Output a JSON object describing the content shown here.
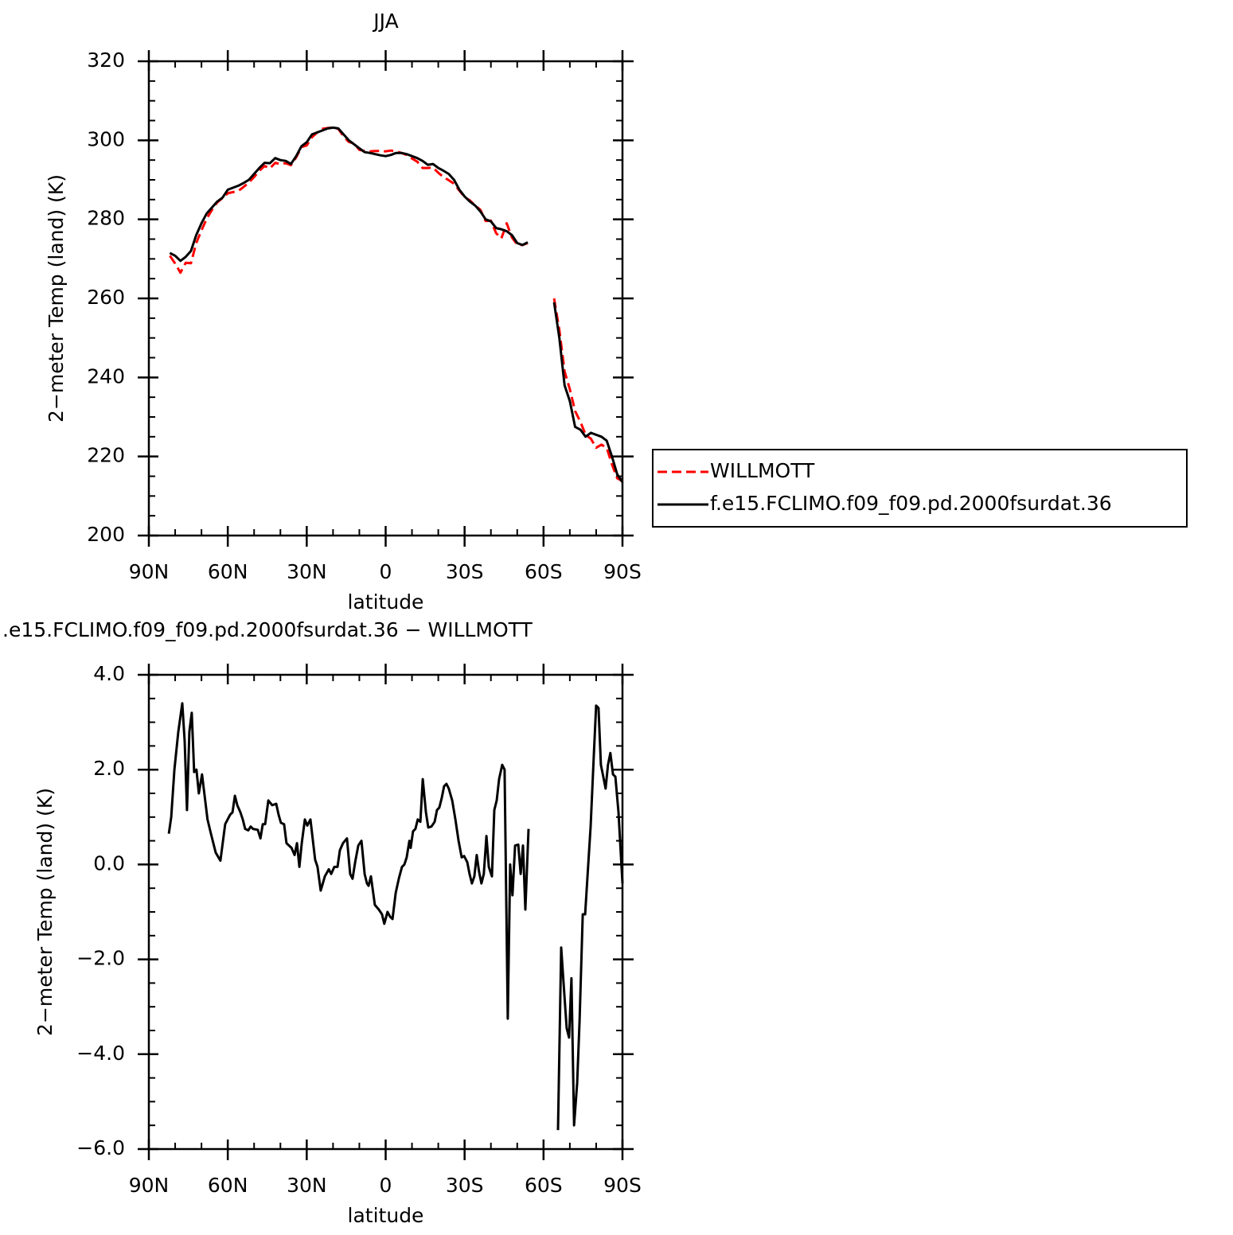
{
  "chart_data": [
    {
      "type": "line",
      "title": "JJA",
      "xlabel": "latitude",
      "ylabel": "2−meter Temp (land) (K)",
      "xlim": [
        90,
        -90
      ],
      "xticks": [
        {
          "value": 90,
          "label": "90N"
        },
        {
          "value": 60,
          "label": "60N"
        },
        {
          "value": 30,
          "label": "30N"
        },
        0,
        {
          "value": -30,
          "label": "30S"
        },
        {
          "value": -60,
          "label": "60S"
        },
        {
          "value": -90,
          "label": "90S"
        }
      ],
      "ylim": [
        200,
        320
      ],
      "yticks": [
        200,
        220,
        240,
        260,
        280,
        300,
        320
      ],
      "legend": "right",
      "x": [
        82,
        80,
        78,
        76,
        74,
        72,
        70,
        68,
        66,
        64,
        62,
        60,
        58,
        56,
        54,
        52,
        50,
        48,
        46,
        44,
        42,
        40,
        38,
        36,
        34,
        32,
        30,
        28,
        26,
        24,
        22,
        20,
        18,
        16,
        14,
        12,
        10,
        8,
        6,
        4,
        2,
        0,
        -2,
        -4,
        -6,
        -8,
        -10,
        -12,
        -14,
        -16,
        -18,
        -20,
        -22,
        -24,
        -26,
        -28,
        -30,
        -32,
        -34,
        -36,
        -38,
        -40,
        -42,
        -44,
        -46,
        -48,
        -50,
        -52,
        -54,
        -60,
        -64,
        -66,
        -68,
        -70,
        -72,
        -74,
        -76,
        -78,
        -80,
        -82,
        -84,
        -86,
        -88,
        -90
      ],
      "series": [
        {
          "name": "WILLMOTT",
          "color": "#ff0000",
          "dash": true,
          "values": [
            270.8,
            268.8,
            266.5,
            269,
            268.9,
            274,
            277.2,
            280.2,
            282.4,
            284.3,
            285.4,
            286.6,
            286.9,
            287.2,
            288.2,
            289.3,
            290.7,
            292.3,
            293.5,
            292.9,
            294.3,
            294,
            294.2,
            293.7,
            295.7,
            298.3,
            298.7,
            300.8,
            302,
            302.9,
            303.1,
            303.2,
            302.9,
            301,
            299.6,
            299.2,
            297.6,
            297.3,
            297.2,
            297.3,
            297.3,
            297.2,
            297.4,
            297.2,
            296.8,
            296.3,
            295.4,
            294.6,
            293,
            293,
            293.1,
            291.8,
            290.7,
            289.9,
            289,
            287.3,
            285.6,
            284.8,
            283.5,
            282.4,
            279.6,
            279.7,
            276.5,
            275.2,
            279,
            275.4,
            273.6,
            273.5,
            274,
            null,
            260,
            252,
            241.5,
            237,
            231.5,
            228.8,
            225.5,
            224.5,
            222.2,
            223,
            222.2,
            218,
            214.5,
            213.8
          ]
        },
        {
          "name": "f.e15.FCLIMO.f09_f09.pd.2000fsurdat.36",
          "color": "#000000",
          "dash": false,
          "values": [
            271.5,
            270.8,
            269.5,
            270.5,
            272,
            276,
            279,
            281.5,
            283,
            284.5,
            285.5,
            287.5,
            288,
            288.5,
            289.2,
            290,
            291.5,
            293,
            294.3,
            294.2,
            295.5,
            295,
            294.8,
            294,
            296,
            298.5,
            299.5,
            301.5,
            302,
            302.5,
            303,
            303.2,
            303,
            301.5,
            300,
            299,
            298,
            297,
            296.8,
            296.5,
            296.2,
            296,
            296.3,
            296.8,
            296.8,
            296.5,
            296,
            295.5,
            294.8,
            293.8,
            294,
            293,
            292.3,
            291.5,
            290,
            287.5,
            285.8,
            284.5,
            283.5,
            282,
            280,
            279.5,
            277.8,
            277.5,
            277,
            276,
            274,
            273.5,
            274.2,
            null,
            259,
            250,
            238,
            234,
            227.5,
            226.8,
            225,
            226,
            225.5,
            225,
            224,
            220,
            215.5,
            213.5
          ]
        }
      ]
    },
    {
      "type": "line",
      "title": ".e15.FCLIMO.f09_f09.pd.2000fsurdat.36 − WILLMOTT",
      "xlabel": "latitude",
      "ylabel": "2−meter Temp (land) (K)",
      "xlim": [
        90,
        -90
      ],
      "xticks": [
        {
          "value": 90,
          "label": "90N"
        },
        {
          "value": 60,
          "label": "60N"
        },
        {
          "value": 30,
          "label": "30N"
        },
        0,
        {
          "value": -30,
          "label": "30S"
        },
        {
          "value": -60,
          "label": "60S"
        },
        {
          "value": -90,
          "label": "90S"
        }
      ],
      "ylim": [
        -6,
        4
      ],
      "yticks": [
        {
          "value": -6,
          "label": "−6.0"
        },
        {
          "value": -4,
          "label": "−4.0"
        },
        {
          "value": -2,
          "label": "−2.0"
        },
        {
          "value": 0,
          "label": "0.0"
        },
        {
          "value": 2,
          "label": "2.0"
        },
        {
          "value": 4,
          "label": "4.0"
        }
      ],
      "x": [
        82.4,
        81.5,
        80.3,
        78.8,
        77.3,
        76.4,
        75.5,
        74.6,
        73.7,
        72.8,
        71.9,
        71.0,
        69.8,
        68.9,
        67.7,
        66.4,
        65.5,
        64.6,
        62.8,
        61.0,
        59.1,
        58.2,
        57.3,
        56.4,
        55.2,
        54.3,
        53.4,
        52.2,
        51.3,
        50.4,
        48.6,
        47.6,
        46.7,
        45.8,
        44.6,
        43.1,
        41.6,
        40.7,
        39.8,
        38.6,
        37.7,
        35.8,
        34.6,
        33.7,
        32.8,
        31.9,
        30.7,
        29.8,
        28.6,
        26.8,
        25.9,
        24.7,
        23.1,
        21.6,
        20.7,
        19.5,
        18.3,
        17.4,
        16.2,
        14.7,
        13.5,
        12.6,
        11.6,
        10.4,
        9.2,
        8.0,
        7.1,
        6.5,
        5.6,
        4.1,
        2.6,
        1.4,
        0.5,
        -0.7,
        -1.7,
        -2.6,
        -3.8,
        -5.0,
        -6.2,
        -7.1,
        -8.0,
        -9.0,
        -9.5,
        -10.4,
        -11.3,
        -12.2,
        -13.2,
        -14.1,
        -15.3,
        -16.2,
        -17.4,
        -18.6,
        -19.5,
        -20.4,
        -21.3,
        -22.2,
        -23.1,
        -24.0,
        -25.3,
        -26.5,
        -27.7,
        -28.9,
        -29.8,
        -31.0,
        -31.9,
        -32.8,
        -33.7,
        -34.6,
        -35.5,
        -36.4,
        -37.3,
        -38.3,
        -39.2,
        -40.4,
        -41.3,
        -42.2,
        -43.1,
        -44.3,
        -45.2,
        -46.4,
        -47.3,
        -48.2,
        -49.2,
        -50.4,
        -51.3,
        -52.2,
        -53.1,
        -54.3,
        -60,
        -65.5,
        -66.7,
        -67.6,
        -68.8,
        -69.7,
        -70.6,
        -71.6,
        -72.8,
        -73.7,
        -74.9,
        -75.8,
        -77.0,
        -77.9,
        -79.1,
        -80.0,
        -80.9,
        -81.8,
        -82.7,
        -83.6,
        -84.5,
        -85.4,
        -86.4,
        -87.3,
        -88.5,
        -89.4,
        -90
      ],
      "series": [
        {
          "color": "#000000",
          "values": [
            0.65,
            1.0,
            2.0,
            2.8,
            3.4,
            2.6,
            1.15,
            2.8,
            3.2,
            1.95,
            2.0,
            1.5,
            1.9,
            1.5,
            0.95,
            0.65,
            0.45,
            0.25,
            0.08,
            0.85,
            1.05,
            1.1,
            1.45,
            1.25,
            1.1,
            0.95,
            0.75,
            0.72,
            0.8,
            0.75,
            0.73,
            0.55,
            0.85,
            0.85,
            1.35,
            1.25,
            1.28,
            1.05,
            0.88,
            0.85,
            0.45,
            0.35,
            0.2,
            0.45,
            -0.05,
            0.45,
            0.95,
            0.82,
            0.95,
            0.1,
            -0.05,
            -0.55,
            -0.25,
            -0.1,
            -0.2,
            -0.05,
            -0.05,
            0.3,
            0.45,
            0.55,
            -0.2,
            -0.3,
            0.05,
            0.4,
            0.5,
            -0.2,
            -0.4,
            -0.45,
            -0.25,
            -0.85,
            -0.95,
            -1.05,
            -1.25,
            -1.0,
            -1.1,
            -1.15,
            -0.6,
            -0.3,
            -0.05,
            0.0,
            0.15,
            0.5,
            0.35,
            0.7,
            0.75,
            0.95,
            0.9,
            1.8,
            1.1,
            0.78,
            0.8,
            0.9,
            1.15,
            1.2,
            1.4,
            1.65,
            1.7,
            1.6,
            1.35,
            0.95,
            0.5,
            0.15,
            0.18,
            0.05,
            -0.2,
            -0.4,
            -0.25,
            0.2,
            -0.15,
            -0.4,
            -0.2,
            0.6,
            -0.05,
            -0.25,
            1.15,
            1.35,
            1.8,
            2.1,
            2.0,
            -3.25,
            0.0,
            -0.65,
            0.4,
            0.42,
            -0.2,
            0.4,
            -0.95,
            0.75,
            null,
            -5.6,
            -1.75,
            -2.5,
            -3.45,
            -3.65,
            -2.4,
            -5.5,
            -4.6,
            -3.3,
            -1.05,
            -1.05,
            0.0,
            0.8,
            2.3,
            3.35,
            3.3,
            2.1,
            1.85,
            1.6,
            2.1,
            2.35,
            1.9,
            1.85,
            1.1,
            0.2,
            -0.4
          ]
        }
      ]
    }
  ]
}
